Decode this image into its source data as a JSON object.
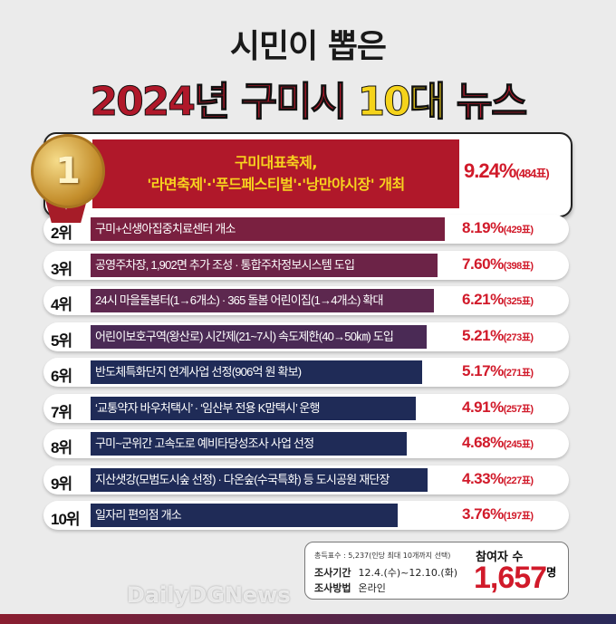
{
  "title": {
    "line1": "시민이 뽑은",
    "line2_a": "2024년 구미시 ",
    "line2_b": "10대",
    "line2_c": " 뉴스"
  },
  "top": {
    "rank": "1",
    "line1": "구미대표축제,",
    "line2": "'라면축제'·'푸드페스티벌'·'낭만야시장' 개최",
    "pct": "9.24%",
    "votes": "(484표)"
  },
  "rows": [
    {
      "rank": "2위",
      "text": "구미+신생아집중치료센터 개소",
      "pct": "8.19%",
      "votes": "(429표)",
      "value": 8.19
    },
    {
      "rank": "3위",
      "text": "공영주차장, 1,902면 추가 조성 · 통합주차정보시스템 도입",
      "pct": "7.60%",
      "votes": "(398표)",
      "value": 7.6
    },
    {
      "rank": "4위",
      "text": "24시 마을돌봄터(1→6개소) · 365 돌봄 어린이집(1→4개소) 확대",
      "pct": "6.21%",
      "votes": "(325표)",
      "value": 6.21
    },
    {
      "rank": "5위",
      "text": "어린이보호구역(왕산로) 시간제(21~7시) 속도제한(40→50㎞) 도입",
      "pct": "5.21%",
      "votes": "(273표)",
      "value": 5.21
    },
    {
      "rank": "6위",
      "text": "반도체특화단지 연계사업 선정(906억 원 확보)",
      "pct": "5.17%",
      "votes": "(271표)",
      "value": 5.17
    },
    {
      "rank": "7위",
      "text": "‘교통약자 바우처택시’ · ‘임산부 전용 K맘택시’ 운행",
      "pct": "4.91%",
      "votes": "(257표)",
      "value": 4.91
    },
    {
      "rank": "8위",
      "text": "구미~군위간 고속도로 예비타당성조사 사업 선정",
      "pct": "4.68%",
      "votes": "(245표)",
      "value": 4.68
    },
    {
      "rank": "9위",
      "text": "지산샛강(모범도시숲 선정) · 다온숲(수국특화) 등 도시공원 재단장",
      "pct": "4.33%",
      "votes": "(227표)",
      "value": 4.33
    },
    {
      "rank": "10위",
      "text": "일자리 편의점 개소",
      "pct": "3.76%",
      "votes": "(197표)",
      "value": 3.76
    }
  ],
  "info": {
    "total": "총득표수 : 5,237(인당 최대 10개까지 선택)",
    "period_label": "조사기간",
    "period": "12.4.(수)~12.10.(화)",
    "method_label": "조사방법",
    "method": "온라인",
    "participants_label": "참여자 수",
    "participants": "1,657",
    "unit": "명"
  },
  "watermark": "DailyDGNews",
  "colors": {
    "red": "#b0182a",
    "gold": "#f7d31e",
    "navy": "#1e2a55"
  }
}
